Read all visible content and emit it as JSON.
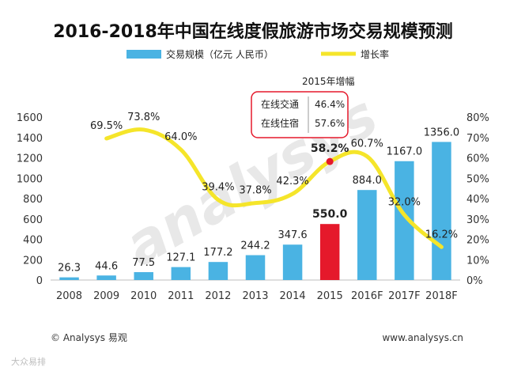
{
  "chart_data": {
    "type": "bar",
    "title": "2016-2018年中国在线度假旅游市场交易规模预测",
    "categories": [
      "2008",
      "2009",
      "2010",
      "2011",
      "2012",
      "2013",
      "2014",
      "2015",
      "2016F",
      "2017F",
      "2018F"
    ],
    "series": [
      {
        "name": "交易规模（亿元 人民币）",
        "type": "bar",
        "axis": "left",
        "color": "#4ab3e3",
        "highlight_color": "#e5192b",
        "highlight_index": 7,
        "values": [
          26.3,
          44.6,
          77.5,
          127.1,
          177.2,
          244.2,
          347.6,
          550.0,
          884.0,
          1167.0,
          1356.0
        ],
        "labels": [
          "26.3",
          "44.6",
          "77.5",
          "127.1",
          "177.2",
          "244.2",
          "347.6",
          "550.0",
          "884.0",
          "1167.0",
          "1356.0"
        ]
      },
      {
        "name": "增长率",
        "type": "line",
        "axis": "right",
        "color": "#f5e52a",
        "marker_color": "#e5192b",
        "values": [
          null,
          69.5,
          73.8,
          64.0,
          39.4,
          37.8,
          42.3,
          58.2,
          60.7,
          32.0,
          16.2
        ],
        "labels": [
          "",
          "69.5%",
          "73.8%",
          "64.0%",
          "39.4%",
          "37.8%",
          "42.3%",
          "58.2%",
          "60.7%",
          "32.0%",
          "16.2%"
        ]
      }
    ],
    "y_left": {
      "min": 0,
      "max": 1600,
      "ticks": [
        "0",
        "200",
        "400",
        "600",
        "800",
        "1000",
        "1200",
        "1400",
        "1600"
      ]
    },
    "y_right": {
      "min": 0,
      "max": 80,
      "ticks": [
        "0%",
        "10%",
        "20%",
        "30%",
        "40%",
        "50%",
        "60%",
        "70%",
        "80%"
      ]
    },
    "legend": {
      "placement": "top",
      "bar_label": "交易规模（亿元 人民币）",
      "line_label": "增长率"
    },
    "annotation": {
      "caption": "2015年增幅",
      "rows": [
        {
          "label": "在线交通",
          "value": "46.4%"
        },
        {
          "label": "在线住宿",
          "value": "57.6%"
        }
      ],
      "border_color": "#e5192b"
    },
    "watermark": "analysys"
  },
  "footer": {
    "left": "© Analysys 易观",
    "right": "www.analysys.cn"
  },
  "corner_mark": "大众易排"
}
